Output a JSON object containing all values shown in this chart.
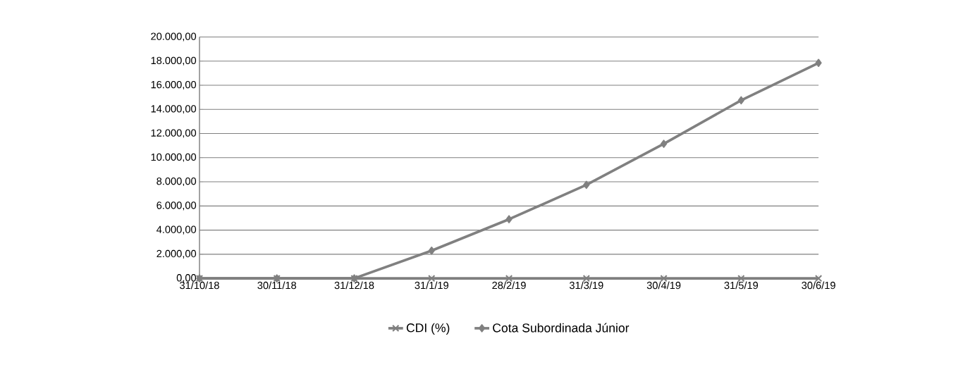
{
  "chart_data": {
    "type": "line",
    "categories": [
      "31/10/18",
      "30/11/18",
      "31/12/18",
      "31/1/19",
      "28/2/19",
      "31/3/19",
      "30/4/19",
      "31/5/19",
      "30/6/19"
    ],
    "series": [
      {
        "name": "CDI (%)",
        "color": "#7f7f7f",
        "marker": "cross",
        "values": [
          0,
          0,
          0,
          0,
          0,
          0,
          0,
          0,
          0
        ]
      },
      {
        "name": "Cota Subordinada Júnior",
        "color": "#808080",
        "marker": "diamond",
        "values": [
          0,
          0,
          0,
          2300,
          4900,
          7750,
          11150,
          14750,
          17850
        ]
      }
    ],
    "ylim": [
      0,
      20000
    ],
    "yticks": [
      {
        "value": 0,
        "label": "0,00"
      },
      {
        "value": 2000,
        "label": "2.000,00"
      },
      {
        "value": 4000,
        "label": "4.000,00"
      },
      {
        "value": 6000,
        "label": "6.000,00"
      },
      {
        "value": 8000,
        "label": "8.000,00"
      },
      {
        "value": 10000,
        "label": "10.000,00"
      },
      {
        "value": 12000,
        "label": "12.000,00"
      },
      {
        "value": 14000,
        "label": "14.000,00"
      },
      {
        "value": 16000,
        "label": "16.000,00"
      },
      {
        "value": 18000,
        "label": "18.000,00"
      },
      {
        "value": 20000,
        "label": "20.000,00"
      }
    ],
    "grid": "y",
    "legend": "bottom",
    "line_style": "solid"
  }
}
